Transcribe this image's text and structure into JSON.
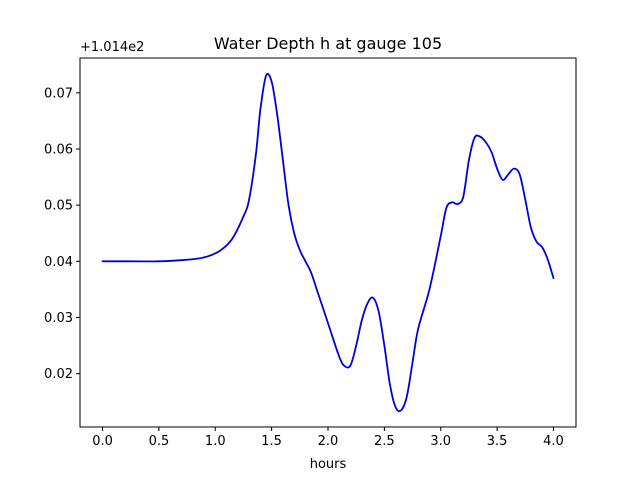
{
  "chart_data": {
    "type": "line",
    "title": "Water Depth h at gauge 105",
    "xlabel": "hours",
    "ylabel": "",
    "y_offset_label": "+1.014e2",
    "xlim": [
      -0.2,
      4.2
    ],
    "ylim": [
      0.0105,
      0.0762
    ],
    "xticks": [
      0.0,
      0.5,
      1.0,
      1.5,
      2.0,
      2.5,
      3.0,
      3.5,
      4.0
    ],
    "xtick_labels": [
      "0.0",
      "0.5",
      "1.0",
      "1.5",
      "2.0",
      "2.5",
      "3.0",
      "3.5",
      "4.0"
    ],
    "yticks": [
      0.02,
      0.03,
      0.04,
      0.05,
      0.06,
      0.07
    ],
    "ytick_labels": [
      "0.02",
      "0.03",
      "0.04",
      "0.05",
      "0.06",
      "0.07"
    ],
    "grid": false,
    "line_color": "#0000dd",
    "series": [
      {
        "x": [
          0.0,
          0.25,
          0.5,
          0.7,
          0.85,
          0.95,
          1.05,
          1.15,
          1.25,
          1.3,
          1.36,
          1.4,
          1.45,
          1.5,
          1.55,
          1.6,
          1.65,
          1.7,
          1.75,
          1.8,
          1.85,
          1.9,
          2.0,
          2.1,
          2.15,
          2.2,
          2.25,
          2.3,
          2.35,
          2.4,
          2.45,
          2.5,
          2.55,
          2.6,
          2.65,
          2.7,
          2.75,
          2.8,
          2.9,
          3.0,
          3.05,
          3.1,
          3.15,
          3.2,
          3.25,
          3.3,
          3.35,
          3.4,
          3.45,
          3.5,
          3.55,
          3.6,
          3.65,
          3.7,
          3.75,
          3.8,
          3.85,
          3.9,
          3.95,
          4.0
        ],
        "y": [
          0.04,
          0.04,
          0.04,
          0.0402,
          0.0405,
          0.041,
          0.042,
          0.044,
          0.048,
          0.051,
          0.059,
          0.067,
          0.073,
          0.072,
          0.066,
          0.058,
          0.05,
          0.045,
          0.042,
          0.04,
          0.038,
          0.035,
          0.029,
          0.023,
          0.0213,
          0.0215,
          0.025,
          0.0295,
          0.0325,
          0.0335,
          0.031,
          0.025,
          0.018,
          0.014,
          0.0135,
          0.016,
          0.022,
          0.028,
          0.035,
          0.0445,
          0.0495,
          0.0505,
          0.0502,
          0.0515,
          0.058,
          0.062,
          0.0622,
          0.0612,
          0.0595,
          0.0565,
          0.0545,
          0.0555,
          0.0565,
          0.0555,
          0.051,
          0.046,
          0.0435,
          0.0425,
          0.0403,
          0.037
        ]
      }
    ]
  }
}
